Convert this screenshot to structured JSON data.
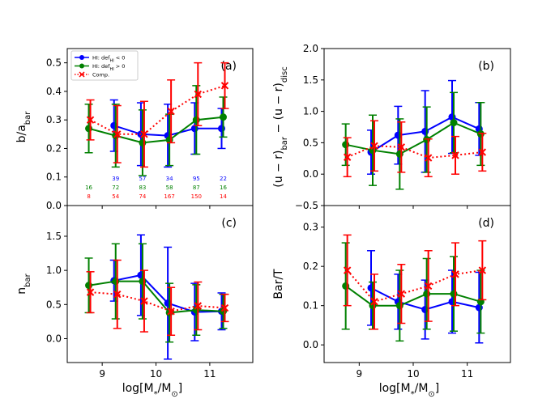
{
  "figure": {
    "xlabel": "log[M*/M⊙]"
  },
  "chart_data": [
    {
      "type": "line",
      "panel": "a",
      "label": "(a)",
      "ylabel": "b/a_bar",
      "ylim": [
        0,
        0.55
      ],
      "yticks": [
        0.0,
        0.1,
        0.2,
        0.3,
        0.4,
        0.5
      ],
      "ytick_labels": [
        "0.0",
        "0.1",
        "0.2",
        "0.3",
        "0.4",
        "0.5"
      ],
      "xlim": [
        8.35,
        11.8
      ],
      "xticks": [
        9,
        10,
        11
      ],
      "xtick_labels": [],
      "legend": {
        "position": "top-left",
        "entries": [
          {
            "label": "HI: def_HI < 0",
            "color": "#0000ff"
          },
          {
            "label": "HI: def_HI > 0",
            "color": "#008000"
          },
          {
            "label": "Comp.",
            "color": "#ff0000"
          }
        ]
      },
      "series": [
        {
          "name": "HI: def_HI < 0",
          "color": "#0000ff",
          "marker": "circle",
          "line": "solid",
          "x": [
            9.25,
            9.75,
            10.25,
            10.75,
            11.25
          ],
          "y": [
            0.28,
            0.25,
            0.245,
            0.27,
            0.27
          ],
          "err": [
            0.09,
            0.11,
            0.11,
            0.09,
            0.07
          ]
        },
        {
          "name": "HI: def_HI > 0",
          "color": "#008000",
          "marker": "circle",
          "line": "solid",
          "x": [
            8.75,
            9.25,
            9.75,
            10.25,
            10.75,
            11.25
          ],
          "y": [
            0.27,
            0.245,
            0.22,
            0.23,
            0.3,
            0.31
          ],
          "err": [
            0.085,
            0.11,
            0.115,
            0.09,
            0.12,
            0.07
          ]
        },
        {
          "name": "Comp.",
          "color": "#ff0000",
          "marker": "x",
          "line": "dotted",
          "x": [
            8.75,
            9.25,
            9.75,
            10.25,
            10.75,
            11.25
          ],
          "y": [
            0.3,
            0.25,
            0.25,
            0.33,
            0.39,
            0.42
          ],
          "err": [
            0.07,
            0.1,
            0.115,
            0.11,
            0.11,
            0.08
          ]
        }
      ],
      "counts": [
        {
          "color": "#0000ff",
          "x": [
            9.25,
            9.75,
            10.25,
            10.75,
            11.25
          ],
          "labels": [
            "39",
            "57",
            "34",
            "95",
            "22"
          ]
        },
        {
          "color": "#008000",
          "x": [
            8.75,
            9.25,
            9.75,
            10.25,
            10.75,
            11.25
          ],
          "labels": [
            "16",
            "72",
            "83",
            "58",
            "87",
            "16"
          ]
        },
        {
          "color": "#ff0000",
          "x": [
            8.75,
            9.25,
            9.75,
            10.25,
            10.75,
            11.25
          ],
          "labels": [
            "8",
            "54",
            "74",
            "167",
            "150",
            "14"
          ]
        }
      ]
    },
    {
      "type": "line",
      "panel": "b",
      "label": "(b)",
      "ylabel": "(u − r)_bar − (u − r)_disc",
      "ylim": [
        -0.5,
        2.0
      ],
      "yticks": [
        -0.5,
        0.0,
        0.5,
        1.0,
        1.5,
        2.0
      ],
      "ytick_labels": [
        "−0.5",
        "0.0",
        "0.5",
        "1.0",
        "1.5",
        "2.0"
      ],
      "xlim": [
        8.35,
        11.8
      ],
      "xticks": [
        9,
        10,
        11
      ],
      "xtick_labels": [],
      "series": [
        {
          "name": "HI: def_HI < 0",
          "color": "#0000ff",
          "marker": "circle",
          "line": "solid",
          "x": [
            9.25,
            9.75,
            10.25,
            10.75,
            11.25
          ],
          "y": [
            0.35,
            0.62,
            0.68,
            0.91,
            0.72
          ],
          "err": [
            0.35,
            0.46,
            0.65,
            0.58,
            0.42
          ]
        },
        {
          "name": "HI: def_HI > 0",
          "color": "#008000",
          "marker": "circle",
          "line": "solid",
          "x": [
            8.75,
            9.25,
            9.75,
            10.25,
            10.75,
            11.25
          ],
          "y": [
            0.47,
            0.38,
            0.32,
            0.55,
            0.82,
            0.64
          ],
          "err": [
            0.33,
            0.56,
            0.56,
            0.52,
            0.48,
            0.5
          ]
        },
        {
          "name": "Comp.",
          "color": "#ff0000",
          "marker": "x",
          "line": "dotted",
          "x": [
            8.75,
            9.25,
            9.75,
            10.25,
            10.75,
            11.25
          ],
          "y": [
            0.27,
            0.45,
            0.43,
            0.26,
            0.3,
            0.35
          ],
          "err": [
            0.31,
            0.4,
            0.4,
            0.3,
            0.3,
            0.3
          ]
        }
      ]
    },
    {
      "type": "line",
      "panel": "c",
      "label": "(c)",
      "ylabel": "n_bar",
      "ylim": [
        -0.35,
        1.95
      ],
      "yticks": [
        0.0,
        0.5,
        1.0,
        1.5
      ],
      "ytick_labels": [
        "0.0",
        "0.5",
        "1.0",
        "1.5"
      ],
      "xlim": [
        8.35,
        11.8
      ],
      "xticks": [
        9,
        10,
        11
      ],
      "xtick_labels": [
        "9",
        "10",
        "11"
      ],
      "series": [
        {
          "name": "HI: def_HI < 0",
          "color": "#0000ff",
          "marker": "circle",
          "line": "solid",
          "x": [
            9.25,
            9.75,
            10.25,
            10.75,
            11.25
          ],
          "y": [
            0.85,
            0.93,
            0.52,
            0.39,
            0.4
          ],
          "err": [
            0.3,
            0.59,
            0.82,
            0.42,
            0.27
          ]
        },
        {
          "name": "HI: def_HI > 0",
          "color": "#008000",
          "marker": "circle",
          "line": "solid",
          "x": [
            8.75,
            9.25,
            9.75,
            10.25,
            10.75,
            11.25
          ],
          "y": [
            0.78,
            0.84,
            0.84,
            0.38,
            0.42,
            0.4
          ],
          "err": [
            0.4,
            0.55,
            0.55,
            0.43,
            0.37,
            0.25
          ]
        },
        {
          "name": "Comp.",
          "color": "#ff0000",
          "marker": "x",
          "line": "dotted",
          "x": [
            8.75,
            9.25,
            9.75,
            10.25,
            10.75,
            11.25
          ],
          "y": [
            0.68,
            0.65,
            0.55,
            0.4,
            0.48,
            0.45
          ],
          "err": [
            0.3,
            0.5,
            0.45,
            0.35,
            0.35,
            0.2
          ]
        }
      ]
    },
    {
      "type": "line",
      "panel": "d",
      "label": "(d)",
      "ylabel": "Bar/T",
      "ylim": [
        -0.045,
        0.355
      ],
      "yticks": [
        0.0,
        0.1,
        0.2,
        0.3
      ],
      "ytick_labels": [
        "0.0",
        "0.1",
        "0.2",
        "0.3"
      ],
      "xlim": [
        8.35,
        11.8
      ],
      "xticks": [
        9,
        10,
        11
      ],
      "xtick_labels": [
        "9",
        "10",
        "11"
      ],
      "series": [
        {
          "name": "HI: def_HI < 0",
          "color": "#0000ff",
          "marker": "circle",
          "line": "solid",
          "x": [
            9.25,
            9.75,
            10.25,
            10.75,
            11.25
          ],
          "y": [
            0.145,
            0.11,
            0.09,
            0.11,
            0.095
          ],
          "err": [
            0.095,
            0.07,
            0.075,
            0.08,
            0.09
          ]
        },
        {
          "name": "HI: def_HI > 0",
          "color": "#008000",
          "marker": "circle",
          "line": "solid",
          "x": [
            8.75,
            9.25,
            9.75,
            10.25,
            10.75,
            11.25
          ],
          "y": [
            0.15,
            0.1,
            0.1,
            0.13,
            0.13,
            0.11
          ],
          "err": [
            0.11,
            0.06,
            0.09,
            0.09,
            0.095,
            0.08
          ]
        },
        {
          "name": "Comp.",
          "color": "#ff0000",
          "marker": "x",
          "line": "dotted",
          "x": [
            8.75,
            9.25,
            9.75,
            10.25,
            10.75,
            11.25
          ],
          "y": [
            0.19,
            0.11,
            0.13,
            0.15,
            0.18,
            0.19
          ],
          "err": [
            0.09,
            0.07,
            0.075,
            0.09,
            0.08,
            0.075
          ]
        }
      ]
    }
  ]
}
